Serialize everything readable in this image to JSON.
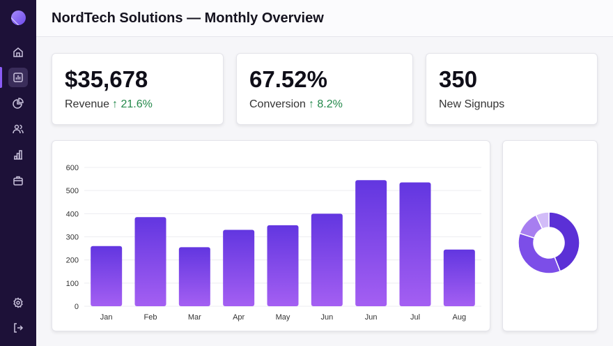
{
  "sidebar": {
    "items": [
      {
        "icon": "home-icon"
      },
      {
        "icon": "bar-chart-icon",
        "active": true
      },
      {
        "icon": "pie-chart-icon"
      },
      {
        "icon": "users-icon"
      },
      {
        "icon": "analytics-icon"
      },
      {
        "icon": "briefcase-icon"
      }
    ],
    "bottom": [
      {
        "icon": "gear-icon"
      },
      {
        "icon": "logout-icon"
      }
    ]
  },
  "header": {
    "title": "NordTech Solutions — Monthly Overview"
  },
  "kpis": [
    {
      "value": "$35,678",
      "label": "Revenue",
      "change": "↑ 21.6%"
    },
    {
      "value": "67.52%",
      "label": "Conversion",
      "change": "↑ 8.2%"
    },
    {
      "value": "350",
      "label": "New Signups"
    }
  ],
  "colors": {
    "accent": "#6d3ae0",
    "positive": "#23884a",
    "sidebar": "#1d1138"
  },
  "chart_data": [
    {
      "type": "bar",
      "categories": [
        "Jan",
        "Feb",
        "Mar",
        "Apr",
        "May",
        "Jun",
        "Jun",
        "Jul",
        "Aug"
      ],
      "values": [
        260,
        385,
        255,
        330,
        350,
        400,
        545,
        535,
        245
      ],
      "ylim": [
        0,
        600
      ],
      "yticks": [
        0,
        100,
        200,
        300,
        400,
        500,
        600
      ],
      "grid": true
    },
    {
      "type": "pie",
      "donut": true,
      "values": [
        44,
        36,
        13,
        7
      ],
      "colors": [
        "#5b30d6",
        "#7c4ee8",
        "#a77ef0",
        "#d2bcf8"
      ]
    }
  ]
}
